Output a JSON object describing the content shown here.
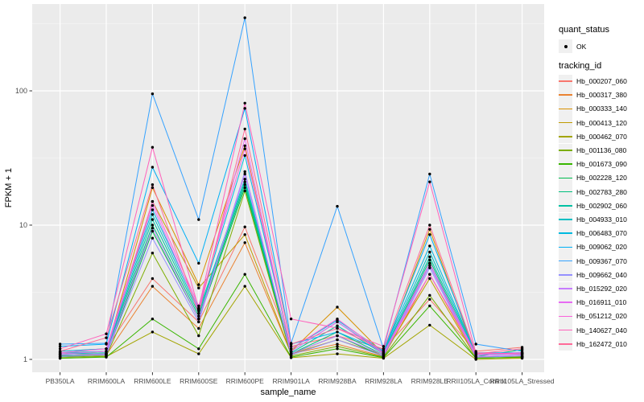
{
  "chart_data": {
    "type": "line",
    "title": "",
    "xlabel": "sample_name",
    "ylabel": "FPKM + 1",
    "y_scale": "log10",
    "y_ticks": [
      1,
      10,
      100
    ],
    "ylim": [
      0.85,
      450
    ],
    "grid": true,
    "panel_bg": "#EBEBEB",
    "grid_major_color": "#FFFFFF",
    "grid_minor_color": "#FFFFFF",
    "point_color": "#000000",
    "axis_text_color": "#4D4D4D",
    "categories": [
      "PB350LA",
      "RRIM600LA",
      "RRIM600LE",
      "RRIM600SE",
      "RRIM600PE",
      "RRIM901LA",
      "RRIM928BA",
      "RRIM928LA",
      "RRIM928LE",
      "RRII105LA_Control",
      "RRII105LA_Stressed"
    ],
    "legend": {
      "quant_title": "quant_status",
      "quant_items": [
        {
          "label": "OK",
          "marker": "point",
          "color": "#000000"
        }
      ],
      "tracking_title": "tracking_id",
      "legend_position": "right"
    },
    "series": [
      {
        "name": "Hb_000207_060",
        "color": "#F8766D",
        "values": [
          1.15,
          1.2,
          4.0,
          1.9,
          9.7,
          1.25,
          1.5,
          1.2,
          2.8,
          1.15,
          1.23
        ]
      },
      {
        "name": "Hb_000317_380",
        "color": "#EA8331",
        "values": [
          1.05,
          1.08,
          3.5,
          1.7,
          7.4,
          1.1,
          1.3,
          1.05,
          4.3,
          1.05,
          1.05
        ]
      },
      {
        "name": "Hb_000333_140",
        "color": "#D89000",
        "values": [
          1.1,
          1.15,
          19.0,
          3.6,
          39.0,
          1.15,
          2.45,
          1.1,
          9.3,
          1.05,
          1.05
        ]
      },
      {
        "name": "Hb_000413_120",
        "color": "#C09B00",
        "values": [
          1.05,
          1.1,
          15.0,
          3.4,
          8.5,
          1.1,
          1.4,
          1.08,
          4.0,
          1.03,
          1.03
        ]
      },
      {
        "name": "Hb_000462_070",
        "color": "#A3A500",
        "values": [
          1.02,
          1.05,
          1.6,
          1.1,
          3.5,
          1.03,
          1.1,
          1.02,
          1.8,
          1.0,
          1.02
        ]
      },
      {
        "name": "Hb_001136_080",
        "color": "#7CAE00",
        "values": [
          1.04,
          1.06,
          6.2,
          1.5,
          18.0,
          1.06,
          1.25,
          1.04,
          3.0,
          1.02,
          1.04
        ]
      },
      {
        "name": "Hb_001673_090",
        "color": "#39B600",
        "values": [
          1.02,
          1.04,
          2.0,
          1.2,
          4.3,
          1.04,
          1.2,
          1.03,
          2.5,
          1.02,
          1.04
        ]
      },
      {
        "name": "Hb_002228_120",
        "color": "#00BB4E",
        "values": [
          1.06,
          1.08,
          9.0,
          2.0,
          19.0,
          1.1,
          1.5,
          1.05,
          5.2,
          1.04,
          1.06
        ]
      },
      {
        "name": "Hb_002783_280",
        "color": "#00BF7D",
        "values": [
          1.08,
          1.1,
          10.0,
          2.1,
          20.0,
          1.1,
          1.6,
          1.08,
          5.5,
          1.05,
          1.18
        ]
      },
      {
        "name": "Hb_002902_060",
        "color": "#00C1A3",
        "values": [
          1.1,
          1.12,
          11.0,
          2.2,
          21.0,
          1.12,
          1.78,
          1.1,
          5.8,
          1.08,
          1.1
        ]
      },
      {
        "name": "Hb_004933_010",
        "color": "#00BFC4",
        "values": [
          1.12,
          1.15,
          12.0,
          2.3,
          22.0,
          1.15,
          1.9,
          1.12,
          6.3,
          1.1,
          1.1
        ]
      },
      {
        "name": "Hb_006483_070",
        "color": "#00BAE0",
        "values": [
          1.15,
          1.2,
          13.0,
          2.4,
          33.0,
          1.2,
          1.96,
          1.15,
          7.0,
          1.1,
          1.12
        ]
      },
      {
        "name": "Hb_009062_020",
        "color": "#00B0F6",
        "values": [
          1.25,
          1.3,
          27.0,
          5.2,
          74.0,
          1.3,
          1.6,
          1.15,
          8.5,
          1.12,
          1.12
        ]
      },
      {
        "name": "Hb_009367_070",
        "color": "#35A2FF",
        "values": [
          1.3,
          1.32,
          95.0,
          11.0,
          350.0,
          1.32,
          13.8,
          1.2,
          24.0,
          1.3,
          1.15
        ]
      },
      {
        "name": "Hb_009662_040",
        "color": "#9590FF",
        "values": [
          1.05,
          1.08,
          8.0,
          1.9,
          25.0,
          1.08,
          1.4,
          1.06,
          4.8,
          1.04,
          1.06
        ]
      },
      {
        "name": "Hb_015292_020",
        "color": "#C77CFF",
        "values": [
          1.08,
          1.1,
          9.5,
          2.0,
          24.0,
          1.1,
          1.5,
          1.08,
          5.0,
          1.05,
          1.08
        ]
      },
      {
        "name": "Hb_016911_010",
        "color": "#E76BF3",
        "values": [
          1.1,
          1.15,
          14.0,
          2.35,
          44.0,
          1.15,
          1.9,
          1.1,
          5.2,
          1.08,
          1.1
        ]
      },
      {
        "name": "Hb_051212_020",
        "color": "#FA62DB",
        "values": [
          1.12,
          1.2,
          15.0,
          2.5,
          37.0,
          1.2,
          2.0,
          1.12,
          4.3,
          1.1,
          1.12
        ]
      },
      {
        "name": "Hb_140627_040",
        "color": "#FF62BC",
        "values": [
          1.2,
          1.55,
          38.0,
          2.4,
          81.0,
          2.0,
          1.71,
          1.25,
          21.0,
          1.12,
          1.1
        ]
      },
      {
        "name": "Hb_162472_010",
        "color": "#FF6A98",
        "values": [
          1.15,
          1.45,
          20.0,
          2.2,
          52.0,
          1.3,
          1.7,
          1.18,
          10.0,
          1.1,
          1.2
        ]
      }
    ]
  }
}
